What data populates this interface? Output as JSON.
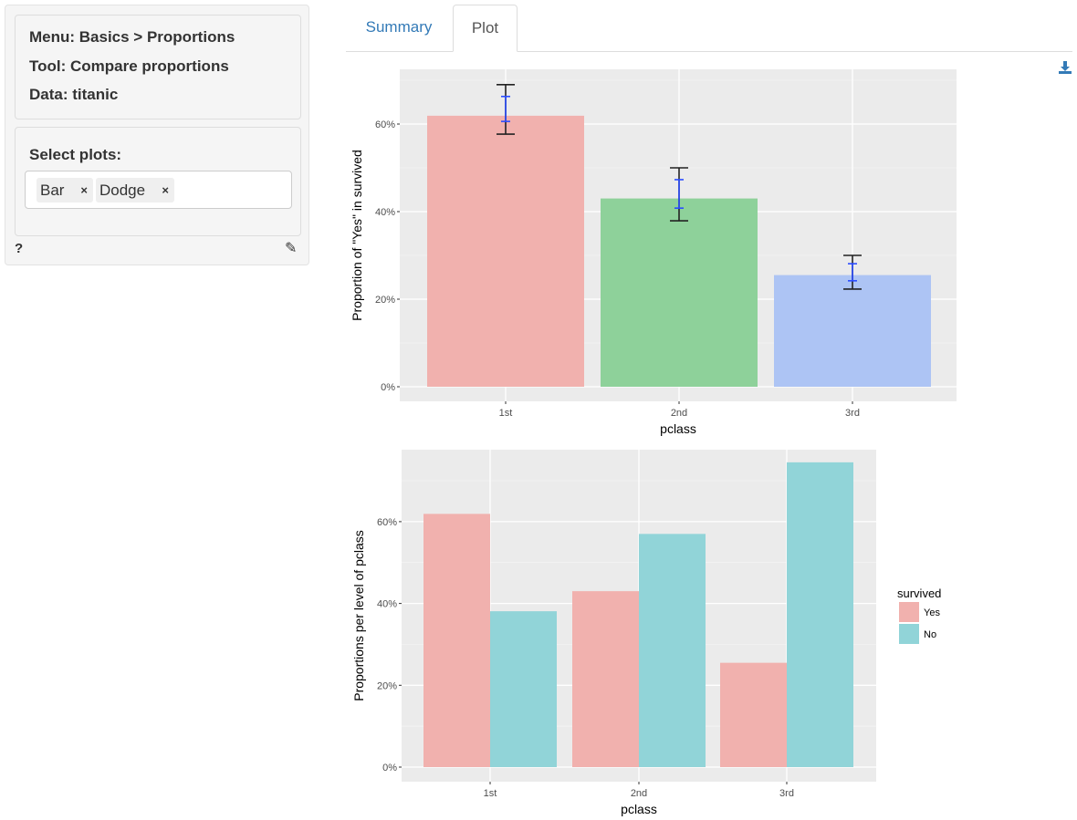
{
  "sidebar": {
    "menu": "Menu: Basics > Proportions",
    "tool": "Tool: Compare proportions",
    "data": "Data: titanic",
    "select_label": "Select plots:",
    "selected": [
      "Bar",
      "Dodge"
    ],
    "remove_symbol": "×",
    "help": "?",
    "edit_icon": "pencil-square-icon"
  },
  "tabs": [
    {
      "label": "Summary",
      "active": false
    },
    {
      "label": "Plot",
      "active": true
    }
  ],
  "download_icon": "download-icon",
  "chart_data": [
    {
      "type": "bar",
      "categories": [
        "1st",
        "2nd",
        "3rd"
      ],
      "values": [
        0.619,
        0.43,
        0.255
      ],
      "error_bars_black": [
        [
          0.577,
          0.69
        ],
        [
          0.379,
          0.5
        ],
        [
          0.223,
          0.3
        ]
      ],
      "error_bars_blue": [
        [
          0.606,
          0.663
        ],
        [
          0.408,
          0.473
        ],
        [
          0.242,
          0.281
        ]
      ],
      "colors": [
        "#F1B1AE",
        "#8ED19A",
        "#ADC4F4"
      ],
      "xlabel": "pclass",
      "ylabel": "Proportion of \"Yes\" in survived",
      "ylim": [
        0,
        0.72
      ],
      "yticks": [
        "0%",
        "20%",
        "40%",
        "60%"
      ],
      "grid": true
    },
    {
      "type": "bar",
      "categories": [
        "1st",
        "2nd",
        "3rd"
      ],
      "series": [
        {
          "name": "Yes",
          "values": [
            0.619,
            0.43,
            0.255
          ],
          "color": "#F1B1AE"
        },
        {
          "name": "No",
          "values": [
            0.381,
            0.57,
            0.745
          ],
          "color": "#91D4D8"
        }
      ],
      "xlabel": "pclass",
      "ylabel": "Proportions per level of pclass",
      "legend_title": "survived",
      "legend_position": "right",
      "ylim": [
        0,
        0.78
      ],
      "yticks": [
        "0%",
        "20%",
        "40%",
        "60%"
      ],
      "grid": true
    }
  ]
}
